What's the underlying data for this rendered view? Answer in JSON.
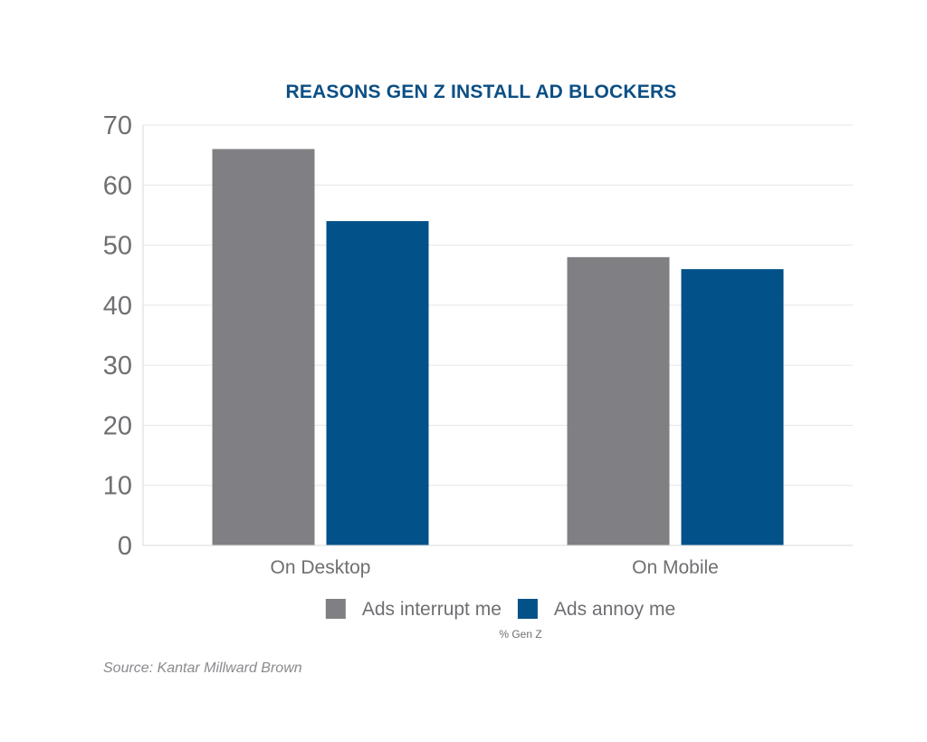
{
  "chart_data": {
    "type": "bar",
    "title": "REASONS GEN Z INSTALL AD BLOCKERS",
    "categories": [
      "On Desktop",
      "On Mobile"
    ],
    "series": [
      {
        "name": "Ads interrupt me",
        "values": [
          66,
          48
        ],
        "color": "#808084"
      },
      {
        "name": "Ads annoy me",
        "values": [
          54,
          46
        ],
        "color": "#025189"
      }
    ],
    "ylim": [
      0,
      70
    ],
    "yticks": [
      "0",
      "10",
      "20",
      "30",
      "40",
      "50",
      "60",
      "70"
    ],
    "grid": true,
    "legend": "bottom",
    "unit_label": "% Gen Z",
    "source": "Source: Kantar Millward Brown"
  }
}
